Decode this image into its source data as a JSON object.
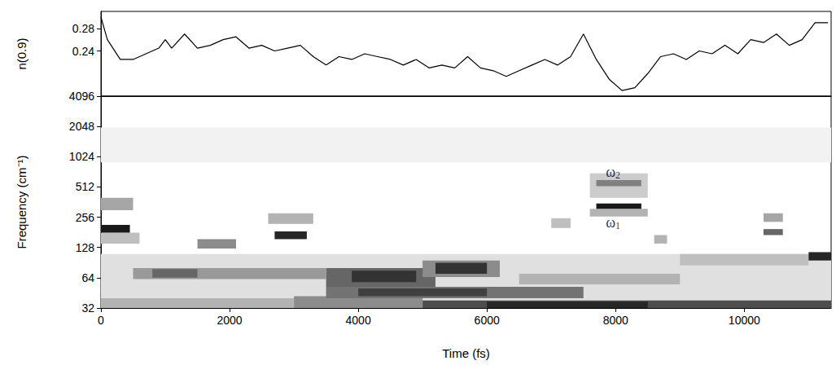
{
  "chart_data": [
    {
      "type": "line",
      "y_label": "n(0.9)",
      "color": "#000000",
      "tick_labels": "y",
      "xlim": [
        0,
        11350
      ],
      "ylim": [
        0.16,
        0.31
      ],
      "yticks": [
        0.24,
        0.28
      ],
      "x": [
        0,
        100,
        300,
        500,
        700,
        900,
        1000,
        1100,
        1300,
        1500,
        1700,
        1900,
        2100,
        2300,
        2500,
        2700,
        2900,
        3100,
        3300,
        3500,
        3700,
        3900,
        4100,
        4300,
        4500,
        4700,
        4900,
        5100,
        5300,
        5500,
        5700,
        5900,
        6100,
        6300,
        6500,
        6700,
        6900,
        7100,
        7300,
        7500,
        7700,
        7900,
        8100,
        8300,
        8500,
        8700,
        8900,
        9100,
        9300,
        9500,
        9700,
        9900,
        10100,
        10300,
        10500,
        10700,
        10900,
        11100,
        11300
      ],
      "values": [
        0.3,
        0.26,
        0.225,
        0.225,
        0.235,
        0.245,
        0.26,
        0.245,
        0.27,
        0.245,
        0.25,
        0.26,
        0.265,
        0.245,
        0.25,
        0.24,
        0.245,
        0.25,
        0.23,
        0.215,
        0.23,
        0.225,
        0.235,
        0.23,
        0.225,
        0.215,
        0.225,
        0.21,
        0.215,
        0.21,
        0.23,
        0.21,
        0.205,
        0.195,
        0.205,
        0.215,
        0.225,
        0.215,
        0.23,
        0.27,
        0.225,
        0.19,
        0.17,
        0.175,
        0.2,
        0.23,
        0.235,
        0.225,
        0.24,
        0.235,
        0.25,
        0.235,
        0.26,
        0.255,
        0.27,
        0.25,
        0.26,
        0.29,
        0.29
      ]
    },
    {
      "type": "heatmap",
      "x_label": "Time (fs)",
      "y_label": "Frequency (cm⁻¹)",
      "log": "y",
      "xlim": [
        0,
        11350
      ],
      "xticks": [
        0,
        2000,
        4000,
        6000,
        8000,
        10000
      ],
      "ylim": [
        32,
        4096
      ],
      "yticks": [
        32,
        64,
        128,
        256,
        512,
        1024,
        2048,
        4096
      ],
      "color_range": [
        0,
        1
      ],
      "cells": [
        [
          0,
          11350,
          32,
          110,
          0.12
        ],
        [
          0,
          11350,
          900,
          2000,
          0.05
        ],
        [
          0,
          3000,
          32,
          40,
          0.3
        ],
        [
          3000,
          5000,
          32,
          42,
          0.45
        ],
        [
          5000,
          11350,
          32,
          38,
          0.7
        ],
        [
          6000,
          8500,
          32,
          37,
          0.85
        ],
        [
          3500,
          7500,
          40,
          52,
          0.55
        ],
        [
          4000,
          6000,
          42,
          50,
          0.75
        ],
        [
          3500,
          5200,
          52,
          80,
          0.6
        ],
        [
          3900,
          4900,
          58,
          75,
          0.8
        ],
        [
          5000,
          6200,
          65,
          95,
          0.45
        ],
        [
          5200,
          6000,
          70,
          90,
          0.8
        ],
        [
          6500,
          9000,
          55,
          70,
          0.3
        ],
        [
          500,
          3500,
          62,
          80,
          0.4
        ],
        [
          800,
          1500,
          64,
          78,
          0.6
        ],
        [
          1500,
          2100,
          125,
          155,
          0.45
        ],
        [
          2600,
          3300,
          220,
          280,
          0.3
        ],
        [
          2700,
          3200,
          155,
          185,
          0.85
        ],
        [
          0,
          600,
          140,
          180,
          0.25
        ],
        [
          0,
          500,
          300,
          400,
          0.35
        ],
        [
          0,
          450,
          180,
          215,
          0.9
        ],
        [
          7000,
          7300,
          200,
          250,
          0.25
        ],
        [
          7600,
          8500,
          400,
          700,
          0.2
        ],
        [
          7700,
          8400,
          520,
          600,
          0.5
        ],
        [
          7600,
          8500,
          260,
          310,
          0.3
        ],
        [
          7700,
          8400,
          310,
          350,
          0.9
        ],
        [
          8600,
          8800,
          140,
          170,
          0.3
        ],
        [
          9000,
          11000,
          85,
          110,
          0.25
        ],
        [
          10300,
          10600,
          230,
          280,
          0.35
        ],
        [
          10300,
          10600,
          170,
          195,
          0.6
        ],
        [
          11000,
          11350,
          95,
          115,
          0.85
        ]
      ],
      "annotations": [
        {
          "text": "ω2",
          "x": 7960,
          "y": 720
        },
        {
          "text": "ω1",
          "x": 7960,
          "y": 228
        }
      ]
    }
  ]
}
